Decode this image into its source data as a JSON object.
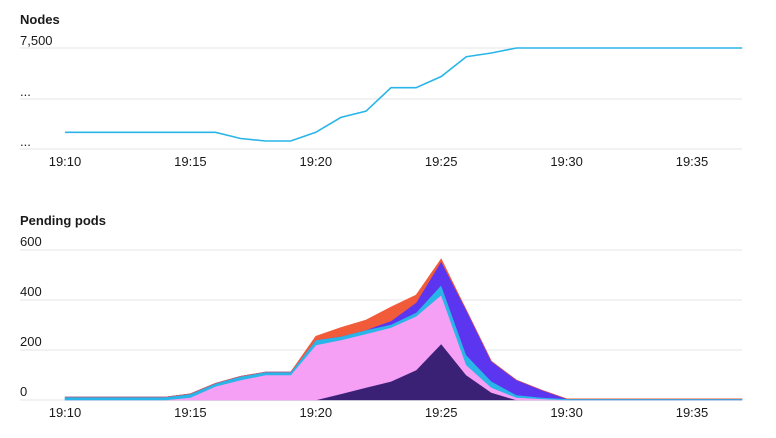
{
  "charts": {
    "nodes_title": "Nodes",
    "pods_title": "Pending pods"
  },
  "chart_data": [
    {
      "type": "line",
      "title": "Nodes",
      "x_ticks": [
        "19:10",
        "19:15",
        "19:20",
        "19:25",
        "19:30",
        "19:35"
      ],
      "y_ticks": [
        "7,500",
        "...",
        "..."
      ],
      "color": "#29b5e8",
      "grid": true,
      "x": [
        "19:10",
        "19:11",
        "19:12",
        "19:13",
        "19:14",
        "19:15",
        "19:16",
        "19:17",
        "19:18",
        "19:19",
        "19:20",
        "19:21",
        "19:22",
        "19:23",
        "19:24",
        "19:25",
        "19:26",
        "19:27",
        "19:28",
        "19:29",
        "19:30",
        "19:31",
        "19:32",
        "19:33",
        "19:34",
        "19:35",
        "19:36",
        "19:37"
      ],
      "series": [
        {
          "values": [
            6920,
            6920,
            6920,
            6920,
            6920,
            6920,
            6920,
            6870,
            6850,
            6850,
            6920,
            7040,
            7090,
            7280,
            7280,
            7370,
            7530,
            7560,
            7600,
            7600,
            7600,
            7600,
            7600,
            7600,
            7600,
            7600,
            7600,
            7600
          ]
        }
      ]
    },
    {
      "type": "area",
      "title": "Pending pods",
      "stacked": true,
      "x_ticks": [
        "19:10",
        "19:15",
        "19:20",
        "19:25",
        "19:30",
        "19:35"
      ],
      "y_ticks": [
        "0",
        "200",
        "400",
        "600"
      ],
      "ylim": [
        0,
        600
      ],
      "grid": true,
      "x": [
        "19:10",
        "19:11",
        "19:12",
        "19:13",
        "19:14",
        "19:15",
        "19:16",
        "19:17",
        "19:18",
        "19:19",
        "19:20",
        "19:21",
        "19:22",
        "19:23",
        "19:24",
        "19:25",
        "19:26",
        "19:27",
        "19:28",
        "19:29",
        "19:30",
        "19:31",
        "19:32",
        "19:33",
        "19:34",
        "19:35",
        "19:36",
        "19:37"
      ],
      "series": [
        {
          "color": "#3b2176",
          "values": [
            0,
            0,
            0,
            0,
            0,
            0,
            0,
            0,
            0,
            0,
            0,
            25,
            50,
            75,
            120,
            225,
            100,
            30,
            0,
            0,
            0,
            0,
            0,
            0,
            0,
            0,
            0,
            0
          ]
        },
        {
          "color": "#f59ff5",
          "values": [
            0,
            0,
            0,
            0,
            0,
            10,
            55,
            80,
            100,
            100,
            220,
            215,
            215,
            215,
            215,
            195,
            40,
            20,
            10,
            5,
            0,
            0,
            0,
            0,
            0,
            0,
            0,
            0
          ]
        },
        {
          "color": "#29b5e8",
          "values": [
            12,
            12,
            12,
            12,
            12,
            15,
            12,
            15,
            12,
            12,
            20,
            15,
            15,
            12,
            15,
            40,
            40,
            25,
            10,
            5,
            5,
            5,
            5,
            5,
            5,
            5,
            5,
            5
          ]
        },
        {
          "color": "#5b35f0",
          "values": [
            0,
            0,
            0,
            0,
            0,
            0,
            0,
            0,
            0,
            0,
            0,
            0,
            0,
            15,
            40,
            95,
            180,
            80,
            60,
            30,
            0,
            0,
            0,
            0,
            0,
            0,
            0,
            0
          ]
        },
        {
          "color": "#f15b3a",
          "values": [
            0,
            0,
            0,
            0,
            0,
            0,
            0,
            0,
            0,
            0,
            15,
            35,
            40,
            55,
            30,
            10,
            0,
            0,
            0,
            0,
            0,
            0,
            0,
            0,
            0,
            0,
            0,
            0
          ]
        }
      ]
    }
  ]
}
